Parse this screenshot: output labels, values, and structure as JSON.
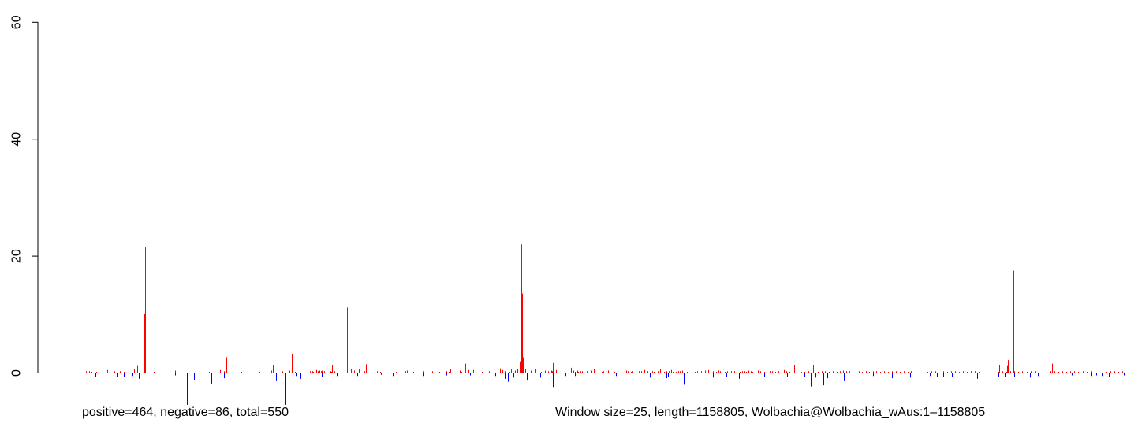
{
  "chart_data": {
    "type": "bar",
    "ylim": [
      -6,
      62
    ],
    "xlim": [
      0,
      1158805
    ],
    "y_ticks": [
      {
        "value": 0,
        "label": "0"
      },
      {
        "value": 20,
        "label": "20"
      },
      {
        "value": 40,
        "label": "40"
      },
      {
        "value": 60,
        "label": "60"
      }
    ],
    "grid": false,
    "colors": {
      "positive": "#ff0000",
      "negative": "#0000ff",
      "baseline": "#000000"
    },
    "caption_left": "positive=464, negative=86, total=550",
    "caption_right": "Window size=25, length=1158805, Wolbachia@Wolbachia_wAus:1–1158805",
    "positive_bars": [
      [
        1800,
        0.3
      ],
      [
        4600,
        0.3
      ],
      [
        8300,
        0.3
      ],
      [
        10100,
        0.2
      ],
      [
        15800,
        0.2
      ],
      [
        27800,
        0.5
      ],
      [
        35500,
        0.3
      ],
      [
        42300,
        0.3
      ],
      [
        46500,
        0.2
      ],
      [
        57600,
        0.7
      ],
      [
        60800,
        1.2
      ],
      [
        68100,
        2.8
      ],
      [
        69300,
        10.2
      ],
      [
        70000,
        21.5
      ],
      [
        71300,
        0.5
      ],
      [
        79600,
        0.2
      ],
      [
        103000,
        0.4
      ],
      [
        113300,
        0.2
      ],
      [
        126100,
        0.3
      ],
      [
        140700,
        0.2
      ],
      [
        152800,
        0.5
      ],
      [
        157300,
        0.3
      ],
      [
        160100,
        2.7
      ],
      [
        177000,
        0.2
      ],
      [
        184000,
        0.3
      ],
      [
        197000,
        0.2
      ],
      [
        209600,
        0.4
      ],
      [
        211800,
        1.4
      ],
      [
        221800,
        0.3
      ],
      [
        229700,
        0.4
      ],
      [
        233000,
        3.3
      ],
      [
        236400,
        0.2
      ],
      [
        241700,
        0.2
      ],
      [
        253100,
        0.3
      ],
      [
        255200,
        0.3
      ],
      [
        256500,
        0.2
      ],
      [
        258000,
        0.4
      ],
      [
        259900,
        0.5
      ],
      [
        261700,
        0.3
      ],
      [
        263100,
        0.4
      ],
      [
        265300,
        0.3
      ],
      [
        266300,
        0.4
      ],
      [
        268700,
        0.3
      ],
      [
        270900,
        0.4
      ],
      [
        275300,
        0.3
      ],
      [
        276700,
        0.2
      ],
      [
        277300,
        1.3
      ],
      [
        280000,
        0.3
      ],
      [
        294200,
        11.2
      ],
      [
        298600,
        0.6
      ],
      [
        302100,
        0.4
      ],
      [
        306700,
        0.7
      ],
      [
        313100,
        0.3
      ],
      [
        315000,
        1.5
      ],
      [
        326800,
        0.3
      ],
      [
        330800,
        0.2
      ],
      [
        341400,
        0.3
      ],
      [
        348400,
        0.2
      ],
      [
        353100,
        0.2
      ],
      [
        358800,
        0.3
      ],
      [
        360600,
        0.4
      ],
      [
        367700,
        0.2
      ],
      [
        369700,
        0.7
      ],
      [
        377600,
        0.3
      ],
      [
        388300,
        0.3
      ],
      [
        394000,
        0.4
      ],
      [
        396200,
        0.2
      ],
      [
        398500,
        0.4
      ],
      [
        404300,
        0.3
      ],
      [
        406900,
        0.2
      ],
      [
        408400,
        0.6
      ],
      [
        410800,
        0.2
      ],
      [
        418500,
        0.4
      ],
      [
        420500,
        0.2
      ],
      [
        425100,
        1.6
      ],
      [
        428900,
        0.5
      ],
      [
        432200,
        1.2
      ],
      [
        434100,
        0.5
      ],
      [
        443200,
        0.2
      ],
      [
        451500,
        0.3
      ],
      [
        460600,
        0.4
      ],
      [
        463900,
        0.8
      ],
      [
        466400,
        0.5
      ],
      [
        468500,
        0.3
      ],
      [
        469800,
        0.3
      ],
      [
        473900,
        0.2
      ],
      [
        475400,
        0.6
      ],
      [
        477300,
        0.6
      ],
      [
        480200,
        0.4
      ],
      [
        482800,
        0.6
      ],
      [
        486600,
        1.2
      ],
      [
        488300,
        0.2
      ],
      [
        491200,
        0.6
      ],
      [
        497600,
        0.4
      ],
      [
        502200,
        0.7
      ],
      [
        503300,
        0.5
      ],
      [
        508800,
        0.2
      ],
      [
        513700,
        0.4
      ],
      [
        516900,
        0.3
      ],
      [
        518600,
        0.2
      ],
      [
        520100,
        0.4
      ],
      [
        521500,
        0.3
      ],
      [
        522200,
        1.7
      ],
      [
        525900,
        0.5
      ],
      [
        531500,
        0.4
      ],
      [
        535500,
        0.2
      ],
      [
        542000,
        0.9
      ],
      [
        545100,
        0.4
      ],
      [
        546600,
        0.2
      ],
      [
        549100,
        0.4
      ],
      [
        550000,
        0.2
      ],
      [
        552500,
        0.3
      ],
      [
        554600,
        0.3
      ],
      [
        556100,
        0.3
      ],
      [
        559700,
        0.3
      ],
      [
        565000,
        0.4
      ],
      [
        567900,
        0.6
      ],
      [
        573000,
        0.2
      ],
      [
        576200,
        0.2
      ],
      [
        578400,
        0.3
      ],
      [
        580500,
        0.3
      ],
      [
        583500,
        0.4
      ],
      [
        589100,
        0.2
      ],
      [
        590500,
        0.2
      ],
      [
        594200,
        0.4
      ],
      [
        597200,
        0.3
      ],
      [
        601900,
        0.4
      ],
      [
        603600,
        0.4
      ],
      [
        605500,
        0.3
      ],
      [
        608300,
        0.2
      ],
      [
        610000,
        0.3
      ],
      [
        613600,
        0.2
      ],
      [
        617300,
        0.3
      ],
      [
        620500,
        0.3
      ],
      [
        622700,
        0.2
      ],
      [
        624000,
        0.5
      ],
      [
        627000,
        0.3
      ],
      [
        631900,
        0.3
      ],
      [
        633800,
        0.2
      ],
      [
        638200,
        0.3
      ],
      [
        641000,
        0.7
      ],
      [
        642700,
        0.5
      ],
      [
        645000,
        0.2
      ],
      [
        648300,
        0.3
      ],
      [
        650900,
        0.3
      ],
      [
        653200,
        0.5
      ],
      [
        655100,
        0.2
      ],
      [
        658400,
        0.2
      ],
      [
        661400,
        0.3
      ],
      [
        663100,
        0.3
      ],
      [
        665300,
        0.4
      ],
      [
        668600,
        0.3
      ],
      [
        670600,
        0.2
      ],
      [
        672800,
        0.4
      ],
      [
        676200,
        0.3
      ],
      [
        679200,
        0.2
      ],
      [
        682100,
        0.3
      ],
      [
        684600,
        0.2
      ],
      [
        686500,
        0.3
      ],
      [
        688600,
        0.3
      ],
      [
        691100,
        0.4
      ],
      [
        694700,
        0.5
      ],
      [
        697100,
        0.3
      ],
      [
        699600,
        0.3
      ],
      [
        702900,
        0.2
      ],
      [
        705600,
        0.4
      ],
      [
        707800,
        0.3
      ],
      [
        709600,
        0.3
      ],
      [
        712900,
        0.2
      ],
      [
        715500,
        0.3
      ],
      [
        717900,
        0.2
      ],
      [
        720200,
        0.3
      ],
      [
        723500,
        0.3
      ],
      [
        726000,
        0.3
      ],
      [
        729500,
        0.2
      ],
      [
        732200,
        0.3
      ],
      [
        734300,
        0.3
      ],
      [
        736800,
        0.2
      ],
      [
        739100,
        0.4
      ],
      [
        741800,
        0.3
      ],
      [
        743700,
        0.2
      ],
      [
        746700,
        0.3
      ],
      [
        749600,
        0.4
      ],
      [
        752400,
        0.3
      ],
      [
        756200,
        0.2
      ],
      [
        759400,
        0.2
      ],
      [
        762300,
        0.3
      ],
      [
        765200,
        0.3
      ],
      [
        768600,
        0.2
      ],
      [
        772200,
        0.3
      ],
      [
        775800,
        0.4
      ],
      [
        778600,
        0.5
      ],
      [
        781400,
        0.3
      ],
      [
        784800,
        0.2
      ],
      [
        788200,
        0.3
      ],
      [
        792400,
        0.3
      ],
      [
        797500,
        0.2
      ],
      [
        800900,
        0.2
      ],
      [
        805500,
        0.3
      ],
      [
        809000,
        0.2
      ],
      [
        812700,
        0.2
      ],
      [
        816400,
        0.2
      ],
      [
        820300,
        0.3
      ],
      [
        824200,
        0.3
      ],
      [
        828300,
        0.2
      ],
      [
        832500,
        0.3
      ],
      [
        836600,
        0.2
      ],
      [
        840500,
        0.3
      ],
      [
        844100,
        0.4
      ],
      [
        847800,
        0.3
      ],
      [
        851100,
        0.3
      ],
      [
        854500,
        0.2
      ],
      [
        857800,
        0.3
      ],
      [
        861300,
        0.3
      ],
      [
        865200,
        0.2
      ],
      [
        869100,
        0.3
      ],
      [
        873200,
        0.2
      ],
      [
        877100,
        0.3
      ],
      [
        881000,
        0.3
      ],
      [
        885400,
        0.2
      ],
      [
        889700,
        0.3
      ],
      [
        893900,
        0.2
      ],
      [
        897800,
        0.3
      ],
      [
        902300,
        0.3
      ],
      [
        906700,
        0.2
      ],
      [
        911000,
        0.3
      ],
      [
        915300,
        0.2
      ],
      [
        919600,
        0.3
      ],
      [
        924000,
        0.3
      ],
      [
        928700,
        0.2
      ],
      [
        932900,
        0.3
      ],
      [
        937300,
        0.2
      ],
      [
        941700,
        0.3
      ],
      [
        946000,
        0.3
      ],
      [
        950200,
        0.2
      ],
      [
        954800,
        0.3
      ],
      [
        959300,
        0.2
      ],
      [
        963500,
        0.3
      ],
      [
        968100,
        0.3
      ],
      [
        972300,
        0.2
      ],
      [
        976900,
        0.3
      ],
      [
        981200,
        0.2
      ],
      [
        985800,
        0.3
      ],
      [
        990100,
        0.3
      ],
      [
        994400,
        0.2
      ],
      [
        998900,
        0.3
      ],
      [
        1003100,
        0.2
      ],
      [
        1007400,
        0.3
      ],
      [
        1011900,
        0.3
      ],
      [
        1016300,
        0.2
      ],
      [
        1020600,
        0.3
      ],
      [
        1025200,
        0.2
      ],
      [
        1029600,
        0.3
      ],
      [
        1034000,
        0.3
      ],
      [
        1038500,
        0.2
      ],
      [
        1042800,
        0.3
      ],
      [
        1047300,
        0.2
      ],
      [
        1051700,
        0.3
      ],
      [
        1056100,
        0.3
      ],
      [
        1060600,
        0.2
      ],
      [
        1065000,
        0.3
      ],
      [
        1069400,
        0.2
      ],
      [
        1073900,
        0.3
      ],
      [
        1078300,
        0.3
      ],
      [
        1082800,
        0.2
      ],
      [
        1087200,
        0.3
      ],
      [
        1091600,
        0.2
      ],
      [
        1096100,
        0.3
      ],
      [
        1100500,
        0.3
      ],
      [
        1104900,
        0.2
      ],
      [
        1109400,
        0.3
      ],
      [
        1113800,
        0.2
      ],
      [
        1118300,
        0.3
      ],
      [
        1122700,
        0.3
      ],
      [
        1127100,
        0.2
      ],
      [
        1131600,
        0.3
      ],
      [
        1136000,
        0.2
      ],
      [
        1140500,
        0.3
      ],
      [
        1144900,
        0.3
      ],
      [
        1149300,
        0.2
      ],
      [
        1153800,
        0.3
      ]
    ],
    "peak_bars": [
      [
        477400,
        64.0
      ],
      [
        485100,
        2.0
      ],
      [
        486100,
        7.5
      ],
      [
        486700,
        22.0
      ],
      [
        487300,
        8.0
      ],
      [
        487900,
        13.6
      ],
      [
        488500,
        2.7
      ],
      [
        510600,
        2.7
      ],
      [
        811000,
        1.3
      ],
      [
        812400,
        4.4
      ],
      [
        1032900,
        17.5
      ],
      [
        1040800,
        3.3
      ],
      [
        1027000,
        2.2
      ],
      [
        1075400,
        1.6
      ],
      [
        1026000,
        1.2
      ],
      [
        790000,
        1.3
      ],
      [
        738000,
        1.3
      ],
      [
        1017000,
        1.3
      ]
    ],
    "negative_bars": [
      [
        14700,
        -0.6
      ],
      [
        26200,
        -0.6
      ],
      [
        38200,
        -0.6
      ],
      [
        46300,
        -0.7
      ],
      [
        56300,
        -0.5
      ],
      [
        62900,
        -1.0
      ],
      [
        103300,
        -0.4
      ],
      [
        116300,
        -5.5
      ],
      [
        123900,
        -1.2
      ],
      [
        130300,
        -0.6
      ],
      [
        138500,
        -2.8
      ],
      [
        143300,
        -1.8
      ],
      [
        147100,
        -1.0
      ],
      [
        157200,
        -0.9
      ],
      [
        176000,
        -0.8
      ],
      [
        204700,
        -0.5
      ],
      [
        209400,
        -0.7
      ],
      [
        214800,
        -1.4
      ],
      [
        225600,
        -9.0
      ],
      [
        236900,
        -0.5
      ],
      [
        242300,
        -1.0
      ],
      [
        245800,
        -1.3
      ],
      [
        265700,
        -0.6
      ],
      [
        282500,
        -0.5
      ],
      [
        305000,
        -0.5
      ],
      [
        331800,
        -0.3
      ],
      [
        344600,
        -0.5
      ],
      [
        377900,
        -0.5
      ],
      [
        403900,
        -0.4
      ],
      [
        430200,
        -0.4
      ],
      [
        458000,
        -0.5
      ],
      [
        469200,
        -1.0
      ],
      [
        471900,
        -1.5
      ],
      [
        478500,
        -0.8
      ],
      [
        493300,
        -1.3
      ],
      [
        508000,
        -0.8
      ],
      [
        522500,
        -2.4
      ],
      [
        536300,
        -0.5
      ],
      [
        547000,
        -0.5
      ],
      [
        568400,
        -0.9
      ],
      [
        577500,
        -0.7
      ],
      [
        592200,
        -0.5
      ],
      [
        601400,
        -1.0
      ],
      [
        630000,
        -0.8
      ],
      [
        647800,
        -0.9
      ],
      [
        649700,
        -0.6
      ],
      [
        667300,
        -2.0
      ],
      [
        700000,
        -0.8
      ],
      [
        714700,
        -0.6
      ],
      [
        728800,
        -1.0
      ],
      [
        756800,
        -0.6
      ],
      [
        767000,
        -0.8
      ],
      [
        781500,
        -0.7
      ],
      [
        800700,
        -0.6
      ],
      [
        807800,
        -2.3
      ],
      [
        813500,
        -0.8
      ],
      [
        822400,
        -2.1
      ],
      [
        826400,
        -0.9
      ],
      [
        842200,
        -1.6
      ],
      [
        845000,
        -1.4
      ],
      [
        862600,
        -0.6
      ],
      [
        877300,
        -0.5
      ],
      [
        897900,
        -0.9
      ],
      [
        912600,
        -0.6
      ],
      [
        940400,
        -0.5
      ],
      [
        947600,
        -0.7
      ],
      [
        964300,
        -0.6
      ],
      [
        992300,
        -1.0
      ],
      [
        1016500,
        -0.6
      ],
      [
        1023500,
        -0.7
      ],
      [
        1034000,
        -0.6
      ],
      [
        1051200,
        -0.8
      ],
      [
        1082200,
        -0.5
      ],
      [
        1097600,
        -0.4
      ],
      [
        1118800,
        -0.5
      ],
      [
        1130600,
        -0.5
      ],
      [
        1138800,
        -0.6
      ],
      [
        1151400,
        -0.9
      ],
      [
        1156300,
        -0.6
      ],
      [
        1155000,
        -0.4
      ],
      [
        1124800,
        -0.4
      ],
      [
        1060000,
        -0.5
      ],
      [
        954700,
        -0.6
      ],
      [
        918500,
        -0.8
      ],
      [
        721400,
        -0.5
      ],
      [
        692900,
        -0.4
      ]
    ]
  }
}
